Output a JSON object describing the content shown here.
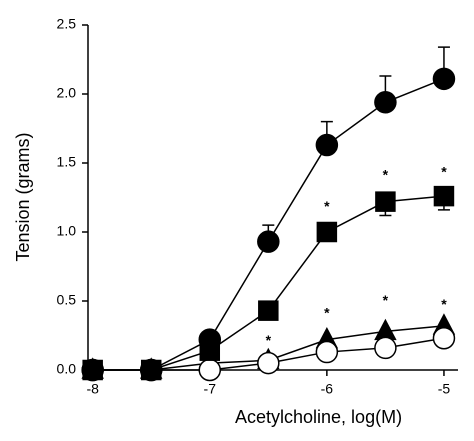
{
  "chart_data": {
    "type": "line",
    "x_label": "Acetylcholine, log(M)",
    "y_label": "Tension (grams)",
    "x": [
      -8,
      -7.5,
      -7,
      -6.5,
      -6,
      -5.5,
      -5
    ],
    "xlim": [
      -8.04,
      -4.88
    ],
    "xticks": [
      -8,
      -7,
      -6,
      -5
    ],
    "ylim": [
      0,
      2.5
    ],
    "yticks": [
      {
        "value": 0,
        "label": "0.0"
      },
      {
        "value": 0.5,
        "label": "0.5"
      },
      {
        "value": 1,
        "label": "1.0"
      },
      {
        "value": 1.5,
        "label": "1.5"
      },
      {
        "value": 2,
        "label": "2.0"
      },
      {
        "value": 2.5,
        "label": "2.5"
      }
    ],
    "series": [
      {
        "marker": "triangle",
        "color": "#000000",
        "fill": "#000000",
        "values": [
          0,
          0,
          0.05,
          0.07,
          0.22,
          0.28,
          0.32
        ]
      },
      {
        "marker": "circle",
        "color": "#000000",
        "fill": "#ffffff",
        "values": [
          0,
          0,
          0,
          0.05,
          0.13,
          0.16,
          0.23
        ]
      },
      {
        "marker": "square",
        "color": "#000000",
        "fill": "#000000",
        "values": [
          0,
          0,
          0.14,
          0.43,
          1.0,
          1.22,
          1.26
        ],
        "errors": [
          0,
          0,
          0,
          0,
          0,
          0.1,
          0.1
        ],
        "error_direction": "down"
      },
      {
        "marker": "circle",
        "color": "#000000",
        "fill": "#000000",
        "values": [
          0,
          0,
          0.22,
          0.93,
          1.63,
          1.94,
          2.11
        ],
        "errors": [
          0,
          0,
          0,
          0.12,
          0.17,
          0.19,
          0.23
        ],
        "error_direction": "up"
      }
    ],
    "annotations": [
      {
        "text": "*",
        "x": -6,
        "y": 1.2
      },
      {
        "text": "*",
        "x": -5.5,
        "y": 1.43
      },
      {
        "text": "*",
        "x": -5,
        "y": 1.45
      },
      {
        "text": "*",
        "x": -6.5,
        "y": 0.23
      },
      {
        "text": "*",
        "x": -6,
        "y": 0.43
      },
      {
        "text": "*",
        "x": -5.5,
        "y": 0.52
      },
      {
        "text": "*",
        "x": -5,
        "y": 0.49
      }
    ]
  }
}
